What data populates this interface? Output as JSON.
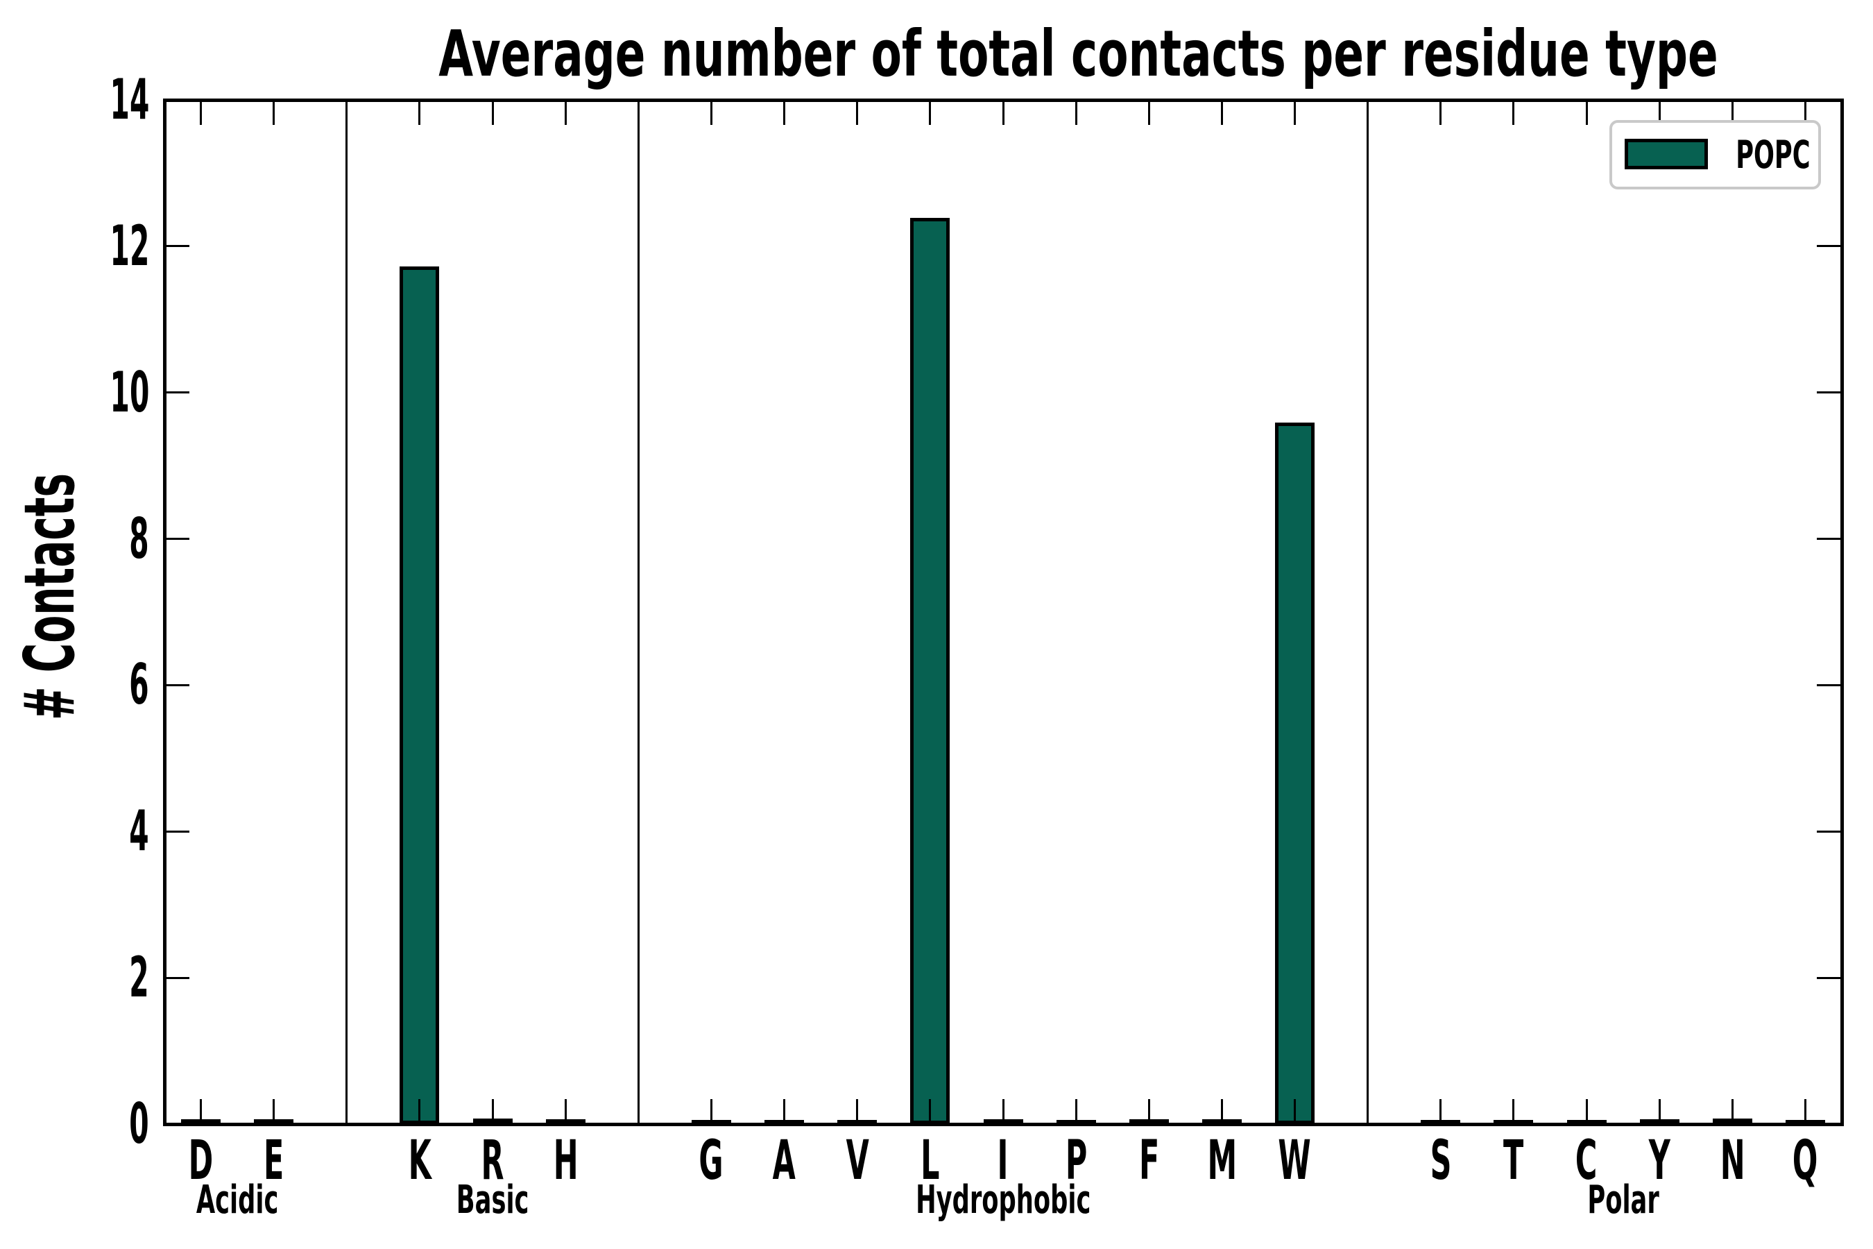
{
  "title": "Average number of total contacts per residue type",
  "ylabel": "# Contacts",
  "legend": {
    "label": "POPC"
  },
  "colors": {
    "bar_fill": "#076151",
    "bar_edge": "#000000",
    "axis": "#000000",
    "legend_border": "#c9c9c9",
    "background": "#ffffff"
  },
  "chart_data": {
    "type": "bar",
    "title": "Average number of total contacts per residue type",
    "xlabel": "",
    "ylabel": "# Contacts",
    "ylim": [
      0,
      14
    ],
    "yticks": [
      0,
      2,
      4,
      6,
      8,
      10,
      12,
      14
    ],
    "grid": false,
    "legend_entries": [
      "POPC"
    ],
    "legend_position": "upper-right",
    "bar_color": "#076151",
    "group_separators_between_groups": true,
    "groups": [
      {
        "label": "Acidic",
        "categories": [
          "D",
          "E"
        ],
        "values": [
          0.04,
          0.04
        ]
      },
      {
        "label": "Basic",
        "categories": [
          "K",
          "R",
          "H"
        ],
        "values": [
          11.72,
          0.05,
          0.04
        ]
      },
      {
        "label": "Hydrophobic",
        "categories": [
          "G",
          "A",
          "V",
          "L",
          "I",
          "P",
          "F",
          "M",
          "W"
        ],
        "values": [
          0.03,
          0.03,
          0.03,
          12.39,
          0.04,
          0.03,
          0.04,
          0.04,
          9.59
        ]
      },
      {
        "label": "Polar",
        "categories": [
          "S",
          "T",
          "C",
          "Y",
          "N",
          "Q"
        ],
        "values": [
          0.03,
          0.03,
          0.03,
          0.04,
          0.05,
          0.03
        ]
      }
    ]
  }
}
